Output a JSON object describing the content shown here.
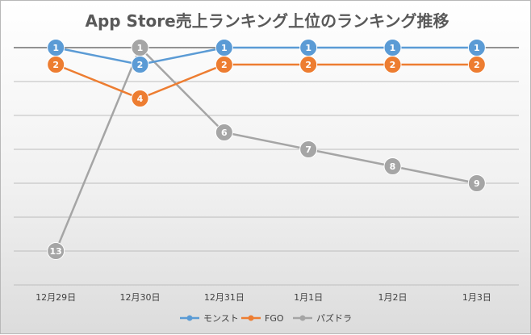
{
  "chart_data": {
    "type": "line",
    "title": "App Store売上ランキング上位のランキング推移",
    "categories": [
      "12月29日",
      "12月30日",
      "12月31日",
      "1月1日",
      "1月2日",
      "1月3日"
    ],
    "series": [
      {
        "name": "モンスト",
        "color": "#5b9bd5",
        "values": [
          1,
          2,
          1,
          1,
          1,
          1
        ]
      },
      {
        "name": "FGO",
        "color": "#ed7d31",
        "values": [
          2,
          4,
          2,
          2,
          2,
          2
        ]
      },
      {
        "name": "パズドラ",
        "color": "#a5a5a5",
        "values": [
          13,
          1,
          6,
          7,
          8,
          9
        ]
      }
    ],
    "y_reversed": true,
    "ylim": [
      1,
      15
    ],
    "gridlines": true,
    "legend_position": "bottom"
  }
}
